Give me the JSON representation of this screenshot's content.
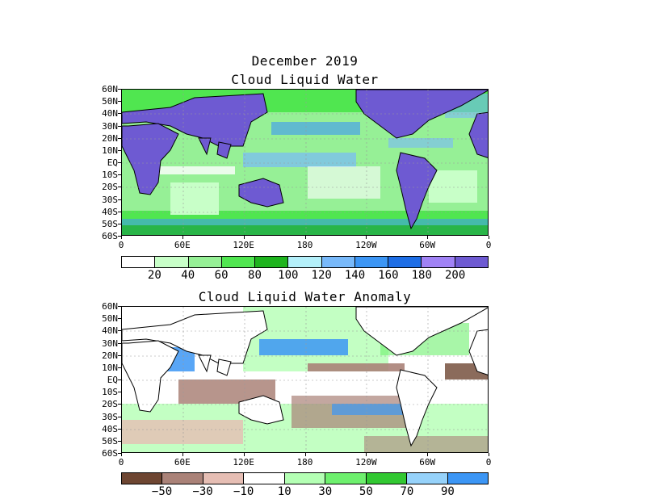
{
  "header": {
    "line1": "December 2019",
    "line2": "Cloud Liquid Water"
  },
  "panel_top": {
    "lat_labels": [
      "60N",
      "50N",
      "40N",
      "30N",
      "20N",
      "10N",
      "EQ",
      "10S",
      "20S",
      "30S",
      "40S",
      "50S",
      "60S"
    ],
    "lon_labels": [
      "0",
      "60E",
      "120E",
      "180",
      "120W",
      "60W",
      "0"
    ],
    "colorbar_colors": [
      "#ffffff",
      "#c8ffc8",
      "#96f096",
      "#50e650",
      "#1eb41e",
      "#b4f0fa",
      "#78b9fa",
      "#3c96f5",
      "#1e6ee6",
      "#a082f5",
      "#6e5ad2"
    ],
    "colorbar_labels": [
      "20",
      "40",
      "60",
      "80",
      "100",
      "120",
      "140",
      "160",
      "180",
      "200"
    ],
    "land_color": "#6e5ad2"
  },
  "panel_bottom": {
    "title": "Cloud Liquid Water Anomaly",
    "lat_labels": [
      "60N",
      "50N",
      "40N",
      "30N",
      "20N",
      "10N",
      "EQ",
      "10S",
      "20S",
      "30S",
      "40S",
      "50S",
      "60S"
    ],
    "lon_labels": [
      "0",
      "60E",
      "120E",
      "180",
      "120W",
      "60W",
      "0"
    ],
    "colorbar_colors": [
      "#6e4632",
      "#aa8278",
      "#e6beb4",
      "#ffffff",
      "#b4ffb4",
      "#6ef06e",
      "#32c832",
      "#96d2fa",
      "#3c96f5"
    ],
    "colorbar_labels": [
      "−50",
      "−30",
      "−10",
      "10",
      "30",
      "50",
      "70",
      "90"
    ]
  }
}
